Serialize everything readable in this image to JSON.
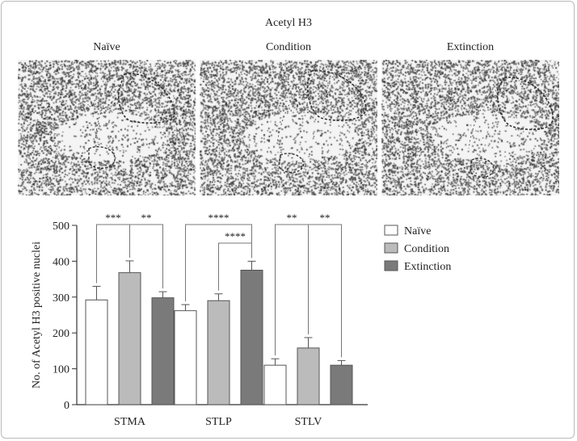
{
  "figure": {
    "title": "Acetyl H3",
    "panels": [
      {
        "label": "Naïve",
        "image": "brain-section-micrograph"
      },
      {
        "label": "Condition",
        "image": "brain-section-micrograph"
      },
      {
        "label": "Extinction",
        "image": "brain-section-micrograph"
      }
    ]
  },
  "chart_data": {
    "type": "bar",
    "ylabel": "No. of Acetyl H3 positive nuclei",
    "ylim": [
      0,
      500
    ],
    "yticks": [
      "0",
      "100",
      "200",
      "300",
      "400",
      "500"
    ],
    "categories": [
      "STMA",
      "STLP",
      "STLV"
    ],
    "series": [
      {
        "name": "Naïve",
        "color": "#ffffff",
        "values": [
          292,
          262,
          110
        ],
        "errors": [
          38,
          17,
          18
        ]
      },
      {
        "name": "Condition",
        "color": "#bbbbbb",
        "values": [
          368,
          290,
          158
        ],
        "errors": [
          33,
          19,
          29
        ]
      },
      {
        "name": "Extinction",
        "color": "#7a7a7a",
        "values": [
          298,
          375,
          110
        ],
        "errors": [
          17,
          25,
          13
        ]
      }
    ],
    "legend_position": "top-right",
    "significance": [
      {
        "group": 0,
        "from": 0,
        "to": 1,
        "label": "***"
      },
      {
        "group": 0,
        "from": 1,
        "to": 2,
        "label": "**"
      },
      {
        "group": 1,
        "from": 0,
        "to": 2,
        "label": "****"
      },
      {
        "group": 1,
        "from": 1,
        "to": 2,
        "label": "****"
      },
      {
        "group": 2,
        "from": 0,
        "to": 1,
        "label": "**"
      },
      {
        "group": 2,
        "from": 1,
        "to": 2,
        "label": "**"
      }
    ]
  }
}
